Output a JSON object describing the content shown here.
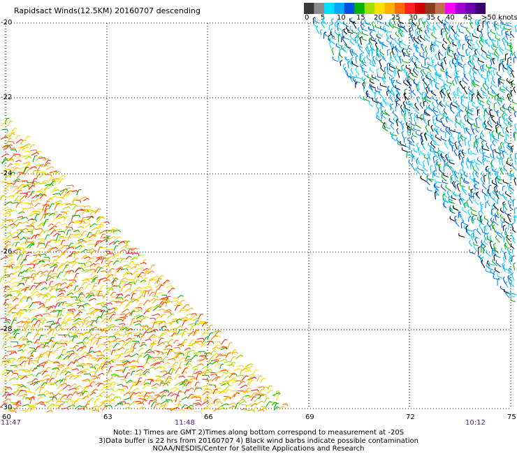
{
  "title": "Rapidsact Winds(12.5KM) 20160707 descending",
  "legend": {
    "colors": [
      "#3a3a3a",
      "#8c8c8c",
      "#00e0ff",
      "#00a8ff",
      "#0050e0",
      "#00b000",
      "#a0e000",
      "#ffe000",
      "#ffb000",
      "#ff6a00",
      "#ff2020",
      "#d00000",
      "#8b3a1a",
      "#c07050",
      "#ff00ff",
      "#a000d0",
      "#6a00b0",
      "#3a0070"
    ],
    "labels": [
      "0",
      "5",
      "10",
      "15",
      "20",
      "25",
      "30",
      "35",
      "40",
      "45",
      ">50 knots"
    ]
  },
  "axes": {
    "lat_labels": [
      "-20",
      "-22",
      "-24",
      "-26",
      "-28",
      "-30"
    ],
    "lon_labels": [
      "60",
      "63",
      "66",
      "69",
      "72",
      "75"
    ],
    "time_labels": [
      "11:47",
      "11:48",
      "10:12"
    ]
  },
  "notes": [
    "Note: 1) Times are GMT 2)Times along bottom correspond to measurement at -20S",
    "3)Data buffer is 22 hrs from 20160707 4) Black wind barbs indicate possible contamination",
    "NOAA/NESDIS/Center for Satellite Applications and Research"
  ],
  "swaths": {
    "left": {
      "palette": [
        "#ffe000",
        "#ffb000",
        "#ffd000",
        "#ff6a00",
        "#a0e000",
        "#00b000",
        "#ff2020"
      ]
    },
    "right": {
      "palette": [
        "#00e0ff",
        "#00a8ff",
        "#0050e0",
        "#0080ff",
        "#00c8ff",
        "#000000",
        "#00b000"
      ]
    }
  }
}
